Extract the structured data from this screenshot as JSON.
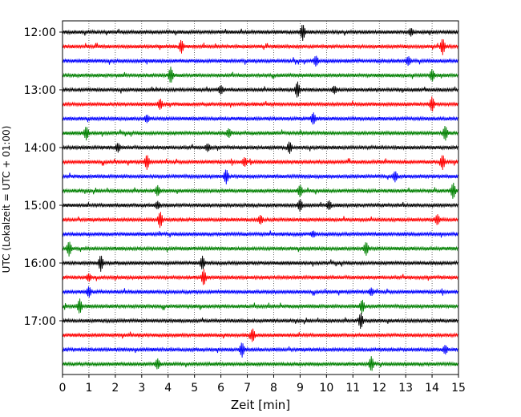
{
  "chart_data": {
    "type": "line",
    "xlabel": "Zeit  [min]",
    "ylabel": "UTC (Lokalzeit = UTC + 01:00)",
    "xlim": [
      0,
      15
    ],
    "x_ticks": [
      "0",
      "1",
      "2",
      "3",
      "4",
      "5",
      "6",
      "7",
      "8",
      "9",
      "10",
      "11",
      "12",
      "13",
      "14",
      "15"
    ],
    "y_ticks": [
      "12:00",
      "13:00",
      "14:00",
      "15:00",
      "16:00",
      "17:00"
    ],
    "grid": "vertical-dotted",
    "trace_colors": [
      "#000000",
      "#ff0000",
      "#0000ff",
      "#008000"
    ],
    "traces": [
      {
        "start": "12:00",
        "spikes": [
          [
            9.1,
            1.0
          ],
          [
            13.2,
            0.4
          ]
        ]
      },
      {
        "start": "12:15",
        "spikes": [
          [
            4.5,
            0.8
          ],
          [
            14.4,
            1.0
          ]
        ]
      },
      {
        "start": "12:30",
        "spikes": [
          [
            9.6,
            0.6
          ],
          [
            13.1,
            0.5
          ]
        ]
      },
      {
        "start": "12:45",
        "spikes": [
          [
            4.1,
            1.0
          ],
          [
            14.0,
            0.7
          ]
        ]
      },
      {
        "start": "13:00",
        "spikes": [
          [
            8.9,
            1.0
          ],
          [
            6.0,
            0.5
          ],
          [
            10.3,
            0.4
          ]
        ]
      },
      {
        "start": "13:15",
        "spikes": [
          [
            3.7,
            0.6
          ],
          [
            14.0,
            0.9
          ]
        ]
      },
      {
        "start": "13:30",
        "spikes": [
          [
            9.5,
            0.7
          ],
          [
            3.2,
            0.4
          ]
        ]
      },
      {
        "start": "13:45",
        "spikes": [
          [
            0.9,
            0.8
          ],
          [
            6.3,
            0.5
          ],
          [
            14.5,
            0.9
          ]
        ]
      },
      {
        "start": "14:00",
        "spikes": [
          [
            2.1,
            0.5
          ],
          [
            5.5,
            0.4
          ],
          [
            8.6,
            0.7
          ]
        ]
      },
      {
        "start": "14:15",
        "spikes": [
          [
            3.2,
            0.9
          ],
          [
            6.9,
            0.5
          ],
          [
            14.4,
            0.9
          ]
        ]
      },
      {
        "start": "14:30",
        "spikes": [
          [
            6.2,
            0.9
          ],
          [
            12.6,
            0.6
          ]
        ]
      },
      {
        "start": "14:45",
        "spikes": [
          [
            3.6,
            0.6
          ],
          [
            9.0,
            0.7
          ],
          [
            14.8,
            1.0
          ]
        ]
      },
      {
        "start": "15:00",
        "spikes": [
          [
            9.0,
            0.7
          ],
          [
            10.1,
            0.5
          ],
          [
            3.6,
            0.4
          ]
        ]
      },
      {
        "start": "15:15",
        "spikes": [
          [
            3.7,
            1.0
          ],
          [
            7.5,
            0.5
          ],
          [
            14.2,
            0.6
          ]
        ]
      },
      {
        "start": "15:30",
        "spikes": [
          [
            9.5,
            0.3
          ]
        ]
      },
      {
        "start": "15:45",
        "spikes": [
          [
            0.25,
            0.9
          ],
          [
            11.5,
            0.8
          ]
        ]
      },
      {
        "start": "16:00",
        "spikes": [
          [
            1.45,
            1.0
          ],
          [
            5.3,
            0.8
          ]
        ]
      },
      {
        "start": "16:15",
        "spikes": [
          [
            5.35,
            1.0
          ],
          [
            1.0,
            0.4
          ]
        ]
      },
      {
        "start": "16:30",
        "spikes": [
          [
            1.0,
            0.6
          ],
          [
            11.7,
            0.4
          ]
        ]
      },
      {
        "start": "16:45",
        "spikes": [
          [
            0.65,
            0.9
          ],
          [
            11.35,
            0.8
          ]
        ]
      },
      {
        "start": "17:00",
        "spikes": [
          [
            11.3,
            1.0
          ]
        ]
      },
      {
        "start": "17:15",
        "spikes": [
          [
            7.2,
            0.8
          ]
        ]
      },
      {
        "start": "17:30",
        "spikes": [
          [
            6.8,
            0.9
          ],
          [
            14.5,
            0.5
          ]
        ]
      },
      {
        "start": "17:45",
        "spikes": [
          [
            3.6,
            0.6
          ],
          [
            11.7,
            0.9
          ]
        ]
      }
    ]
  }
}
